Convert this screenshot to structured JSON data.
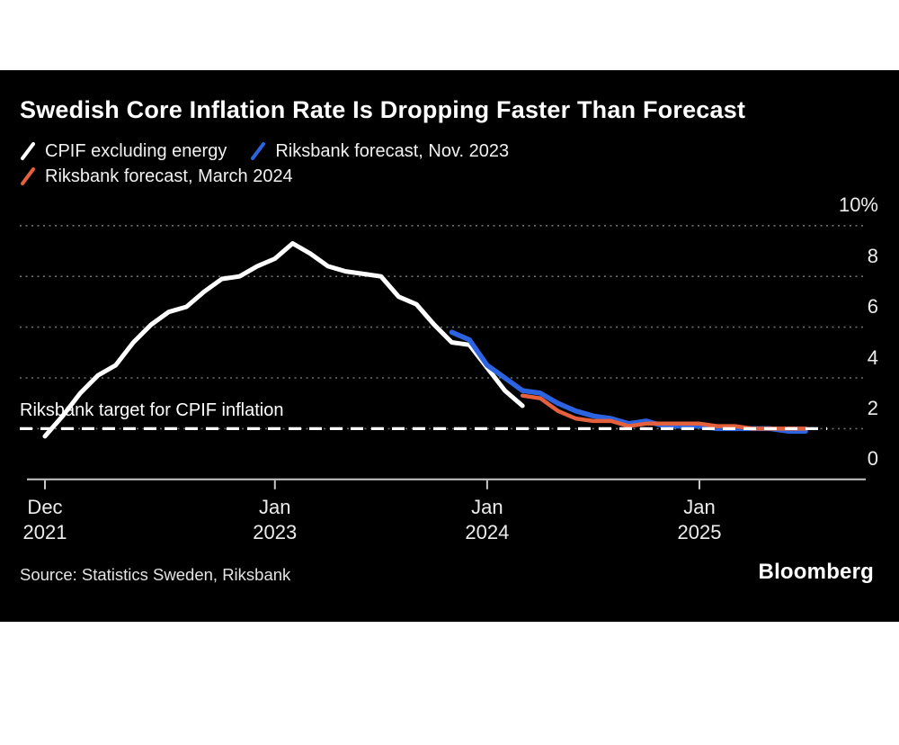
{
  "page": {
    "background": "#ffffff",
    "card_background": "#000000"
  },
  "header": {
    "title": "Swedish Core Inflation Rate Is Dropping Faster Than Forecast"
  },
  "legend": [
    {
      "label": "CPIF excluding energy",
      "color": "#ffffff",
      "row": 1
    },
    {
      "label": "Riksbank forecast, Nov. 2023",
      "color": "#2c63e0",
      "row": 1
    },
    {
      "label": "Riksbank forecast, March 2024",
      "color": "#e5603c",
      "row": 2
    }
  ],
  "chart_data": {
    "type": "line",
    "title": "Swedish Core Inflation Rate Is Dropping Faster Than Forecast",
    "unit": "%",
    "ylim": [
      0,
      10
    ],
    "grid": "dotted horizontal gridlines, dark gray",
    "legend_position": "top-left, slash markers",
    "y_ticks": [
      {
        "label": "10%",
        "value": 10
      },
      {
        "label": "8",
        "value": 8
      },
      {
        "label": "6",
        "value": 6
      },
      {
        "label": "4",
        "value": 4
      },
      {
        "label": "2",
        "value": 2
      },
      {
        "label": "0",
        "value": 0
      }
    ],
    "x_ticks": [
      {
        "month": "Dec",
        "year": "2021",
        "month_index": 0
      },
      {
        "month": "Jan",
        "year": "2023",
        "month_index": 13
      },
      {
        "month": "Jan",
        "year": "2024",
        "month_index": 25
      },
      {
        "month": "Jan",
        "year": "2025",
        "month_index": 37
      }
    ],
    "x_axis_note": "monthly data, Dec 2021 through Jul 2025",
    "months_count": 44,
    "target_line": {
      "value": 2,
      "style": "white dashed"
    },
    "annotation": {
      "text": "Riksbank target for CPIF inflation",
      "value": 2
    },
    "series": [
      {
        "name": "CPIF excluding energy",
        "color": "#ffffff",
        "stroke_width": 5,
        "start_month_index": 0,
        "values": [
          1.7,
          2.5,
          3.4,
          4.1,
          4.5,
          5.4,
          6.1,
          6.6,
          6.8,
          7.4,
          7.9,
          8.0,
          8.4,
          8.7,
          9.3,
          8.9,
          8.4,
          8.2,
          8.1,
          8.0,
          7.2,
          6.9,
          6.1,
          5.4,
          5.3,
          4.4,
          3.5,
          2.9
        ]
      },
      {
        "name": "Riksbank forecast, Nov. 2023",
        "color": "#2c63e0",
        "stroke_width": 5.5,
        "start_month_index": 23,
        "values": [
          5.8,
          5.5,
          4.5,
          4.0,
          3.5,
          3.4,
          3.0,
          2.7,
          2.5,
          2.4,
          2.2,
          2.3,
          2.1,
          2.1,
          2.1,
          2.0,
          2.0,
          2.0,
          2.0,
          1.9,
          1.9
        ]
      },
      {
        "name": "Riksbank forecast, March 2024",
        "color": "#e5603c",
        "stroke_width": 4.5,
        "start_month_index": 27,
        "values": [
          3.3,
          3.2,
          2.7,
          2.4,
          2.3,
          2.3,
          2.1,
          2.2,
          2.2,
          2.2,
          2.2,
          2.1,
          2.1,
          2.0,
          2.0,
          2.0,
          2.0
        ]
      }
    ],
    "colors": {
      "grid": "#6f6f6f",
      "axis": "#c8c8c8",
      "tick_label": "#ececec",
      "target": "#ffffff"
    }
  },
  "footer": {
    "source": "Source: Statistics Sweden, Riksbank",
    "logo": "Bloomberg"
  }
}
